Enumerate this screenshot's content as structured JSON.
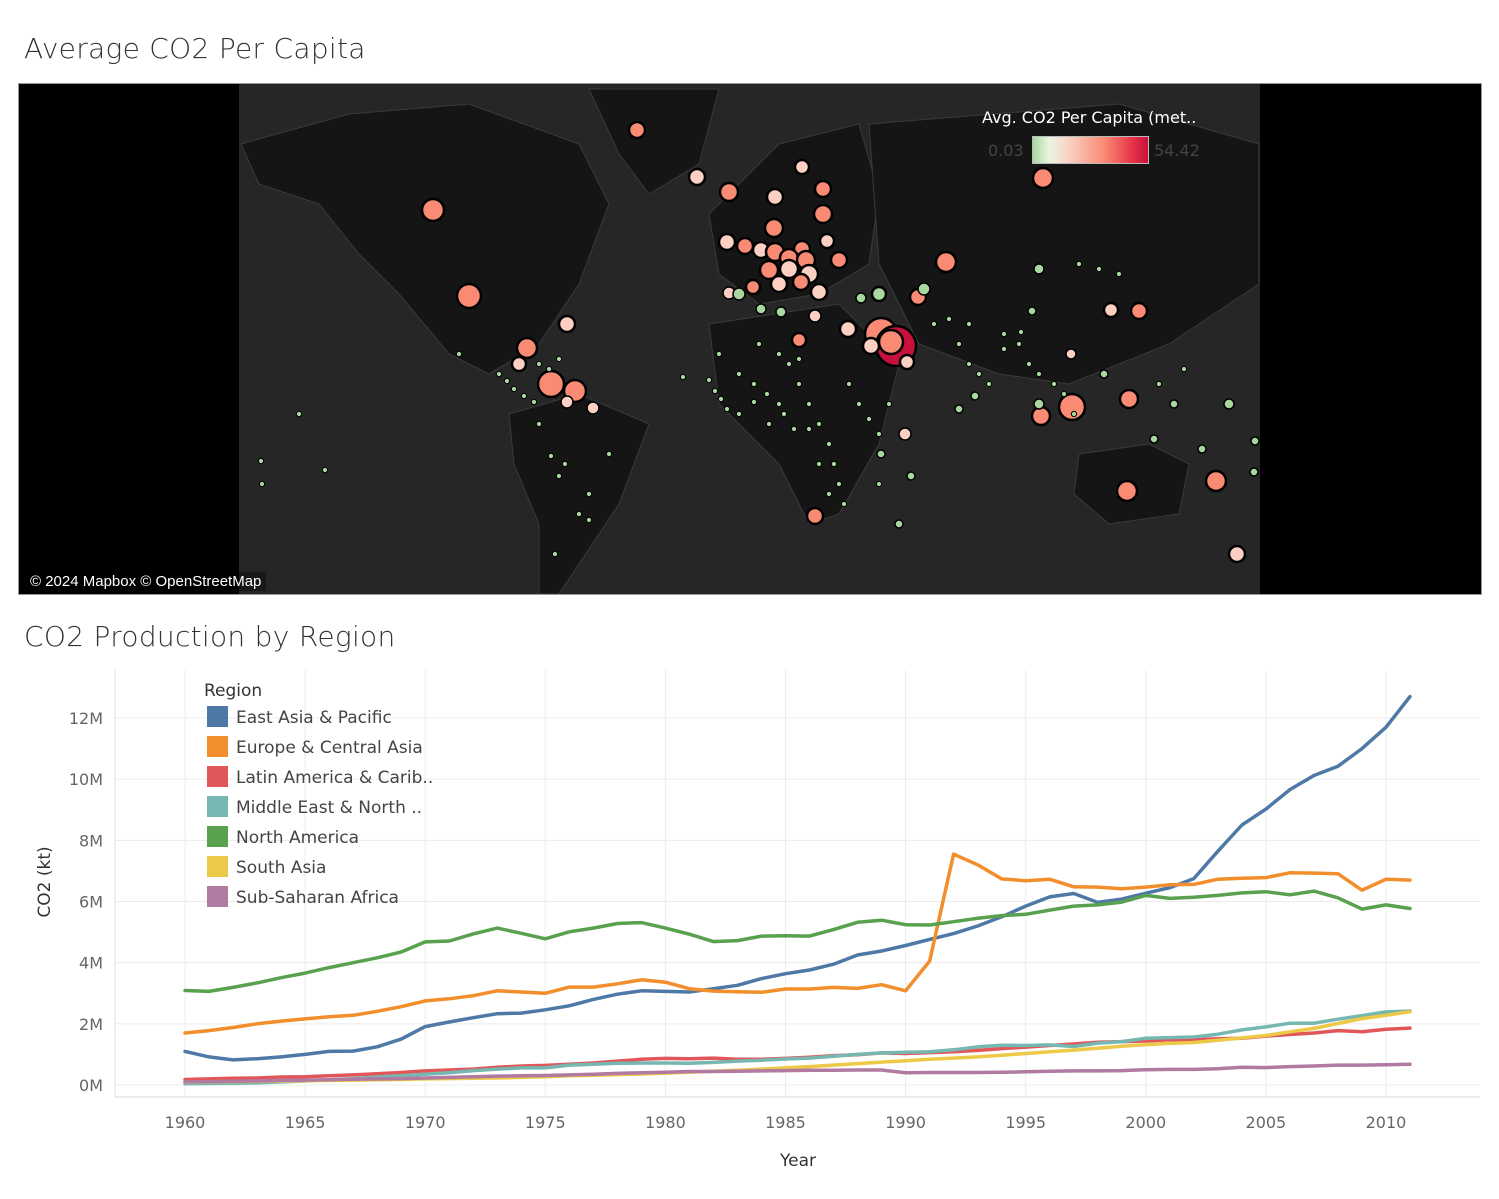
{
  "dashboard": {
    "map_title": "Average CO2 Per Capita",
    "line_title": "CO2 Production by Region"
  },
  "map": {
    "legend_title": "Avg. CO2 Per Capita (met..",
    "legend_min": "0.03",
    "legend_max": "54.42",
    "attribution": "© 2024 Mapbox © OpenStreetMap",
    "colors": {
      "low": "#a8d8a0",
      "mid": "#fbd0c3",
      "high": "#f98a74",
      "max": "#c8103c"
    }
  },
  "chart_data": {
    "type": "line",
    "xlabel": "Year",
    "ylabel": "CO2 (kt)",
    "legend_title": "Region",
    "legend_position": "top-left",
    "xlim": [
      1960,
      2011
    ],
    "ylim": [
      0,
      13000000
    ],
    "x_ticks": [
      "1960",
      "1965",
      "1970",
      "1975",
      "1980",
      "1985",
      "1990",
      "1995",
      "2000",
      "2005",
      "2010"
    ],
    "y_ticks": [
      {
        "value": 0,
        "label": "0M"
      },
      {
        "value": 2000000,
        "label": "2M"
      },
      {
        "value": 4000000,
        "label": "4M"
      },
      {
        "value": 6000000,
        "label": "6M"
      },
      {
        "value": 8000000,
        "label": "8M"
      },
      {
        "value": 10000000,
        "label": "10M"
      },
      {
        "value": 12000000,
        "label": "12M"
      }
    ],
    "grid": true,
    "x": [
      1960,
      1961,
      1962,
      1963,
      1964,
      1965,
      1966,
      1967,
      1968,
      1969,
      1970,
      1971,
      1972,
      1973,
      1974,
      1975,
      1976,
      1977,
      1978,
      1979,
      1980,
      1981,
      1982,
      1983,
      1984,
      1985,
      1986,
      1987,
      1988,
      1989,
      1990,
      1991,
      1992,
      1993,
      1994,
      1995,
      1996,
      1997,
      1998,
      1999,
      2000,
      2001,
      2002,
      2003,
      2004,
      2005,
      2006,
      2007,
      2008,
      2009,
      2010,
      2011
    ],
    "series": [
      {
        "name": "East Asia & Pacific",
        "color": "#4e79a7",
        "values": [
          1100000,
          920000,
          820000,
          860000,
          920000,
          1000000,
          1100000,
          1110000,
          1250000,
          1500000,
          1910000,
          2060000,
          2200000,
          2330000,
          2350000,
          2460000,
          2590000,
          2800000,
          2970000,
          3080000,
          3060000,
          3040000,
          3150000,
          3260000,
          3480000,
          3640000,
          3760000,
          3950000,
          4250000,
          4380000,
          4560000,
          4760000,
          4950000,
          5200000,
          5500000,
          5850000,
          6150000,
          6260000,
          5970000,
          6080000,
          6270000,
          6450000,
          6750000,
          7640000,
          8500000,
          9020000,
          9660000,
          10120000,
          10420000,
          11000000,
          11700000,
          12700000
        ]
      },
      {
        "name": "Europe & Central Asia",
        "color": "#f28e2b",
        "values": [
          1700000,
          1780000,
          1880000,
          2000000,
          2090000,
          2160000,
          2230000,
          2280000,
          2410000,
          2560000,
          2750000,
          2820000,
          2920000,
          3080000,
          3040000,
          3000000,
          3200000,
          3200000,
          3310000,
          3440000,
          3360000,
          3150000,
          3070000,
          3050000,
          3030000,
          3140000,
          3140000,
          3190000,
          3160000,
          3280000,
          3080000,
          4050000,
          7550000,
          7200000,
          6740000,
          6680000,
          6730000,
          6480000,
          6470000,
          6420000,
          6470000,
          6550000,
          6560000,
          6730000,
          6760000,
          6780000,
          6940000,
          6930000,
          6910000,
          6370000,
          6730000,
          6700000
        ]
      },
      {
        "name": "Latin America & Carib..",
        "color": "#e15759",
        "values": [
          180000,
          200000,
          220000,
          230000,
          260000,
          270000,
          300000,
          330000,
          370000,
          410000,
          460000,
          490000,
          520000,
          580000,
          620000,
          640000,
          680000,
          720000,
          780000,
          840000,
          870000,
          860000,
          880000,
          840000,
          840000,
          870000,
          910000,
          960000,
          990000,
          1050000,
          1030000,
          1060000,
          1090000,
          1130000,
          1190000,
          1240000,
          1290000,
          1340000,
          1400000,
          1420000,
          1440000,
          1480000,
          1480000,
          1510000,
          1530000,
          1600000,
          1650000,
          1700000,
          1780000,
          1740000,
          1820000,
          1860000
        ]
      },
      {
        "name": "Middle East & North ..",
        "color": "#76b7b2",
        "values": [
          40000,
          50000,
          60000,
          70000,
          100000,
          130000,
          170000,
          210000,
          260000,
          300000,
          350000,
          400000,
          470000,
          520000,
          560000,
          560000,
          650000,
          680000,
          710000,
          720000,
          720000,
          710000,
          740000,
          780000,
          810000,
          850000,
          880000,
          940000,
          1000000,
          1050000,
          1070000,
          1090000,
          1150000,
          1250000,
          1300000,
          1290000,
          1310000,
          1260000,
          1370000,
          1420000,
          1530000,
          1550000,
          1570000,
          1660000,
          1800000,
          1900000,
          2020000,
          2020000,
          2150000,
          2270000,
          2390000,
          2420000
        ]
      },
      {
        "name": "North America",
        "color": "#59a14f",
        "values": [
          3090000,
          3060000,
          3190000,
          3340000,
          3510000,
          3660000,
          3840000,
          4000000,
          4160000,
          4350000,
          4680000,
          4710000,
          4940000,
          5130000,
          4960000,
          4780000,
          5010000,
          5130000,
          5280000,
          5310000,
          5130000,
          4930000,
          4690000,
          4720000,
          4870000,
          4880000,
          4870000,
          5080000,
          5320000,
          5390000,
          5240000,
          5230000,
          5340000,
          5450000,
          5540000,
          5580000,
          5720000,
          5850000,
          5890000,
          5980000,
          6200000,
          6100000,
          6140000,
          6200000,
          6280000,
          6320000,
          6220000,
          6340000,
          6120000,
          5750000,
          5890000,
          5770000
        ]
      },
      {
        "name": "South Asia",
        "color": "#edc948",
        "values": [
          90000,
          100000,
          110000,
          120000,
          130000,
          140000,
          150000,
          160000,
          170000,
          180000,
          200000,
          210000,
          220000,
          230000,
          250000,
          270000,
          300000,
          320000,
          340000,
          360000,
          390000,
          420000,
          450000,
          480000,
          520000,
          560000,
          600000,
          650000,
          700000,
          750000,
          790000,
          840000,
          880000,
          920000,
          970000,
          1030000,
          1090000,
          1140000,
          1200000,
          1270000,
          1320000,
          1360000,
          1390000,
          1460000,
          1540000,
          1620000,
          1740000,
          1850000,
          2010000,
          2170000,
          2280000,
          2400000
        ]
      },
      {
        "name": "Sub-Saharan Africa",
        "color": "#b07aa1",
        "values": [
          100000,
          110000,
          120000,
          130000,
          150000,
          160000,
          170000,
          190000,
          200000,
          210000,
          230000,
          250000,
          270000,
          290000,
          300000,
          310000,
          330000,
          350000,
          380000,
          400000,
          420000,
          440000,
          440000,
          450000,
          460000,
          470000,
          480000,
          480000,
          490000,
          490000,
          400000,
          410000,
          410000,
          410000,
          420000,
          430000,
          450000,
          460000,
          460000,
          470000,
          500000,
          510000,
          510000,
          530000,
          580000,
          570000,
          600000,
          620000,
          650000,
          650000,
          660000,
          680000
        ]
      }
    ]
  }
}
